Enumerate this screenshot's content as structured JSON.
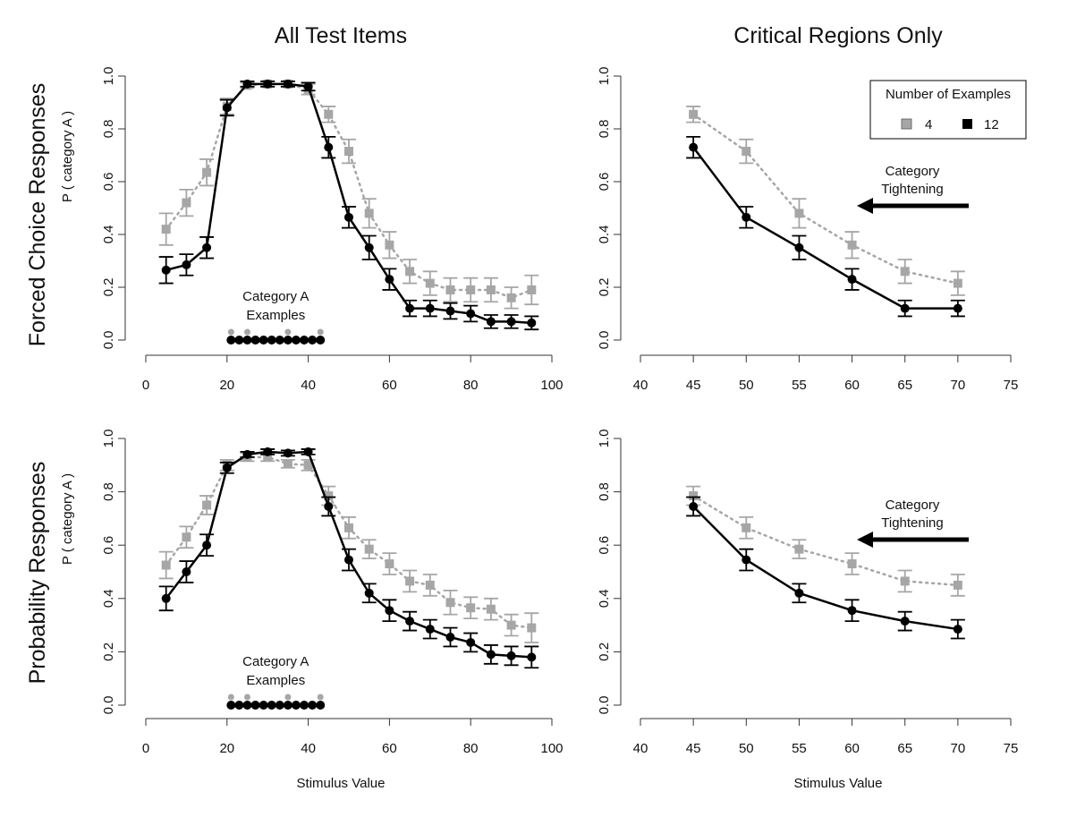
{
  "figure": {
    "column_titles": [
      "All Test Items",
      "Critical Regions Only"
    ],
    "row_titles": [
      "Forced Choice Responses",
      "Probability Responses"
    ],
    "ylabel": "P ( category A )",
    "xlabel": "Stimulus Value",
    "annotation_examples": [
      "Category A",
      "Examples"
    ],
    "annotation_tightening": [
      "Category",
      "Tightening"
    ],
    "legend": {
      "title": "Number of Examples",
      "entries": [
        "4",
        "12"
      ]
    },
    "colors": {
      "4": "#a6a6a6",
      "12": "#000000"
    }
  },
  "chart_data": [
    {
      "type": "line",
      "panel": "top-left",
      "title": "All Test Items",
      "ylabel": "P ( category A )",
      "xlim": [
        0,
        100
      ],
      "ylim": [
        0,
        1
      ],
      "xticks": [
        "0",
        "20",
        "40",
        "60",
        "80",
        "100"
      ],
      "yticks": [
        "0.0",
        "0.2",
        "0.4",
        "0.6",
        "0.8",
        "1.0"
      ],
      "x": [
        5,
        10,
        15,
        20,
        25,
        30,
        35,
        40,
        45,
        50,
        55,
        60,
        65,
        70,
        75,
        80,
        85,
        90,
        95
      ],
      "series": [
        {
          "name": "4",
          "values": [
            0.42,
            0.52,
            0.635,
            0.885,
            0.965,
            0.97,
            0.97,
            0.95,
            0.855,
            0.715,
            0.48,
            0.36,
            0.26,
            0.215,
            0.19,
            0.19,
            0.19,
            0.16,
            0.19
          ],
          "error": [
            0.06,
            0.05,
            0.05,
            0.03,
            0.01,
            0.01,
            0.01,
            0.02,
            0.03,
            0.045,
            0.055,
            0.05,
            0.045,
            0.045,
            0.045,
            0.045,
            0.045,
            0.04,
            0.055
          ]
        },
        {
          "name": "12",
          "values": [
            0.265,
            0.285,
            0.35,
            0.88,
            0.97,
            0.97,
            0.97,
            0.96,
            0.73,
            0.465,
            0.35,
            0.23,
            0.12,
            0.12,
            0.11,
            0.1,
            0.07,
            0.07,
            0.065
          ],
          "error": [
            0.05,
            0.04,
            0.04,
            0.03,
            0.01,
            0.01,
            0.01,
            0.015,
            0.04,
            0.04,
            0.045,
            0.04,
            0.03,
            0.03,
            0.03,
            0.03,
            0.025,
            0.025,
            0.025
          ]
        }
      ],
      "examples": {
        "4": [
          21,
          25,
          35,
          43
        ],
        "12": [
          21,
          23,
          25,
          27,
          29,
          31,
          33,
          35,
          37,
          39,
          41,
          43
        ]
      }
    },
    {
      "type": "line",
      "panel": "top-right",
      "title": "Critical Regions Only",
      "xlim": [
        40,
        75
      ],
      "ylim": [
        0,
        1
      ],
      "xticks": [
        "40",
        "45",
        "50",
        "55",
        "60",
        "65",
        "70",
        "75"
      ],
      "yticks": [
        "0.0",
        "0.2",
        "0.4",
        "0.6",
        "0.8",
        "1.0"
      ],
      "x": [
        45,
        50,
        55,
        60,
        65,
        70
      ],
      "series": [
        {
          "name": "4",
          "values": [
            0.855,
            0.715,
            0.48,
            0.36,
            0.26,
            0.215
          ],
          "error": [
            0.03,
            0.045,
            0.055,
            0.05,
            0.045,
            0.045
          ]
        },
        {
          "name": "12",
          "values": [
            0.73,
            0.465,
            0.35,
            0.23,
            0.12,
            0.12
          ],
          "error": [
            0.04,
            0.04,
            0.045,
            0.04,
            0.03,
            0.03
          ]
        }
      ]
    },
    {
      "type": "line",
      "panel": "bottom-left",
      "xlabel": "Stimulus Value",
      "ylabel": "P ( category A )",
      "xlim": [
        0,
        100
      ],
      "ylim": [
        0,
        1
      ],
      "xticks": [
        "0",
        "20",
        "40",
        "60",
        "80",
        "100"
      ],
      "yticks": [
        "0.0",
        "0.2",
        "0.4",
        "0.6",
        "0.8",
        "1.0"
      ],
      "x": [
        5,
        10,
        15,
        20,
        25,
        30,
        35,
        40,
        45,
        50,
        55,
        60,
        65,
        70,
        75,
        80,
        85,
        90,
        95
      ],
      "series": [
        {
          "name": "4",
          "values": [
            0.525,
            0.63,
            0.75,
            0.9,
            0.93,
            0.93,
            0.905,
            0.9,
            0.785,
            0.665,
            0.585,
            0.53,
            0.465,
            0.45,
            0.385,
            0.365,
            0.36,
            0.3,
            0.29
          ],
          "error": [
            0.05,
            0.04,
            0.035,
            0.02,
            0.015,
            0.015,
            0.015,
            0.02,
            0.035,
            0.04,
            0.035,
            0.04,
            0.04,
            0.04,
            0.045,
            0.04,
            0.04,
            0.04,
            0.055
          ]
        },
        {
          "name": "12",
          "values": [
            0.4,
            0.5,
            0.6,
            0.89,
            0.94,
            0.95,
            0.945,
            0.95,
            0.745,
            0.545,
            0.42,
            0.355,
            0.315,
            0.285,
            0.255,
            0.235,
            0.19,
            0.185,
            0.18
          ],
          "error": [
            0.045,
            0.04,
            0.04,
            0.02,
            0.01,
            0.01,
            0.01,
            0.01,
            0.035,
            0.04,
            0.035,
            0.04,
            0.035,
            0.035,
            0.035,
            0.035,
            0.035,
            0.035,
            0.04
          ]
        }
      ],
      "examples": {
        "4": [
          21,
          25,
          35,
          43
        ],
        "12": [
          21,
          23,
          25,
          27,
          29,
          31,
          33,
          35,
          37,
          39,
          41,
          43
        ]
      }
    },
    {
      "type": "line",
      "panel": "bottom-right",
      "xlabel": "Stimulus Value",
      "xlim": [
        40,
        75
      ],
      "ylim": [
        0,
        1
      ],
      "xticks": [
        "40",
        "45",
        "50",
        "55",
        "60",
        "65",
        "70",
        "75"
      ],
      "yticks": [
        "0.0",
        "0.2",
        "0.4",
        "0.6",
        "0.8",
        "1.0"
      ],
      "x": [
        45,
        50,
        55,
        60,
        65,
        70
      ],
      "series": [
        {
          "name": "4",
          "values": [
            0.785,
            0.665,
            0.585,
            0.53,
            0.465,
            0.45
          ],
          "error": [
            0.035,
            0.04,
            0.035,
            0.04,
            0.04,
            0.04
          ]
        },
        {
          "name": "12",
          "values": [
            0.745,
            0.545,
            0.42,
            0.355,
            0.315,
            0.285
          ],
          "error": [
            0.035,
            0.04,
            0.035,
            0.04,
            0.035,
            0.035
          ]
        }
      ]
    }
  ]
}
